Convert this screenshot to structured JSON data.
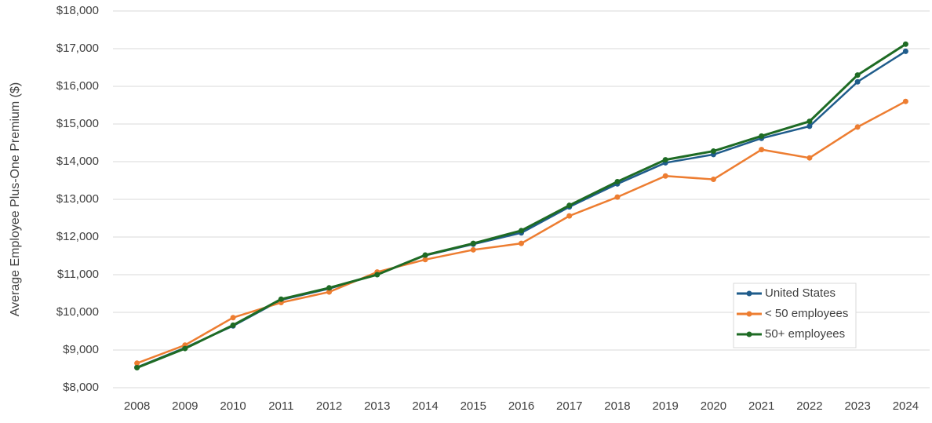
{
  "chart_data": {
    "type": "line",
    "y_label": "Average Employee Plus-One Premium ($)",
    "categories": [
      "2008",
      "2009",
      "2010",
      "2011",
      "2012",
      "2013",
      "2014",
      "2015",
      "2016",
      "2017",
      "2018",
      "2019",
      "2020",
      "2021",
      "2022",
      "2023",
      "2024"
    ],
    "series": [
      {
        "name": "United States",
        "color": "#1f5c8b",
        "values": [
          8540,
          9060,
          9640,
          10330,
          10630,
          11010,
          11510,
          11810,
          12110,
          12800,
          13410,
          13970,
          14190,
          14620,
          14940,
          16120,
          16930
        ]
      },
      {
        "name": "< 50 employees",
        "color": "#ed7d31",
        "values": [
          8650,
          9130,
          9860,
          10260,
          10540,
          11070,
          11400,
          11660,
          11830,
          12560,
          13060,
          13620,
          13530,
          14320,
          14100,
          14920,
          15600
        ]
      },
      {
        "name": "50+ employees",
        "color": "#1e6b24",
        "values": [
          8530,
          9040,
          9660,
          10350,
          10650,
          11000,
          11520,
          11830,
          12170,
          12840,
          13470,
          14050,
          14280,
          14680,
          15070,
          16300,
          17120
        ]
      }
    ],
    "ylim": [
      8000,
      18000
    ],
    "yticks": [
      {
        "value": 8000,
        "label": "$8,000"
      },
      {
        "value": 9000,
        "label": "$9,000"
      },
      {
        "value": 10000,
        "label": "$10,000"
      },
      {
        "value": 11000,
        "label": "$11,000"
      },
      {
        "value": 12000,
        "label": "$12,000"
      },
      {
        "value": 13000,
        "label": "$13,000"
      },
      {
        "value": 14000,
        "label": "$14,000"
      },
      {
        "value": 15000,
        "label": "$15,000"
      },
      {
        "value": 16000,
        "label": "$16,000"
      },
      {
        "value": 17000,
        "label": "$17,000"
      },
      {
        "value": 18000,
        "label": "$18,000"
      }
    ],
    "grid": true,
    "legend": "lower-right"
  }
}
